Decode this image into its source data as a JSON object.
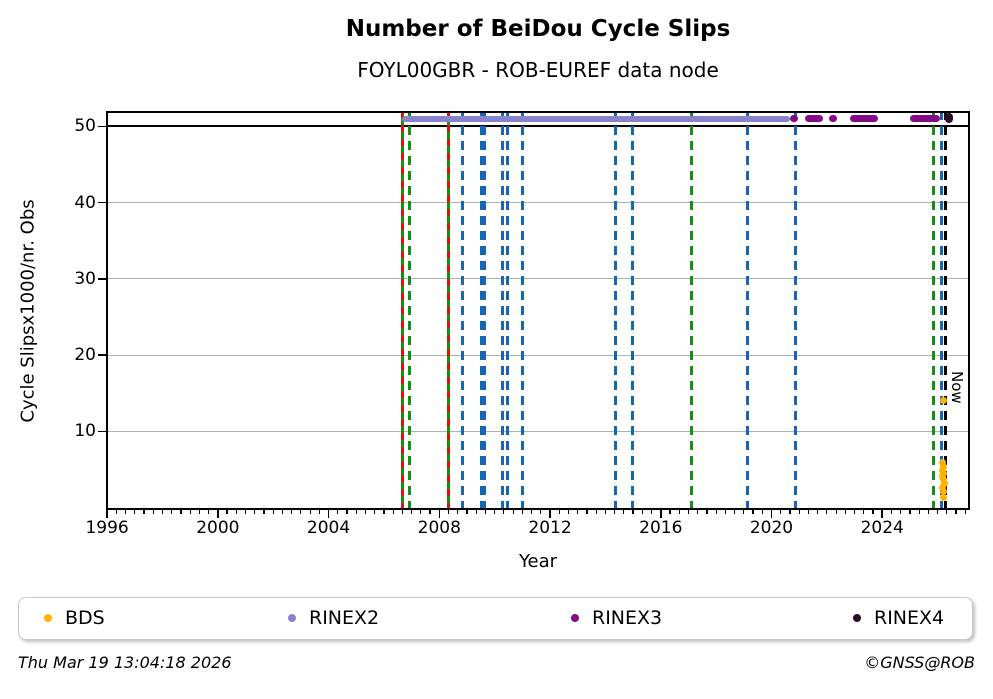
{
  "header": {
    "title": "Number of BeiDou Cycle Slips",
    "subtitle": "FOYL00GBR - ROB-EUREF data node"
  },
  "axes": {
    "xlabel": "Year",
    "ylabel": "Cycle Slipsx1000/nr. Obs"
  },
  "annotations": {
    "now_label": "Now"
  },
  "legend": {
    "items": [
      {
        "label": "BDS",
        "color": "#ffb300"
      },
      {
        "label": "RINEX2",
        "color": "#8884c9"
      },
      {
        "label": "RINEX3",
        "color": "#850a85"
      },
      {
        "label": "RINEX4",
        "color": "#2a0b2a"
      }
    ]
  },
  "footer": {
    "timestamp": "Thu Mar 19 13:04:18 2026",
    "credit": "©GNSS@ROB"
  },
  "chart_data": {
    "type": "scatter",
    "title": "Number of BeiDou Cycle Slips",
    "subtitle": "FOYL00GBR - ROB-EUREF data node",
    "xlabel": "Year",
    "ylabel": "Cycle Slipsx1000/nr. Obs",
    "xlim": [
      1995.96,
      2027.17
    ],
    "ylim": [
      -0.3,
      52.0
    ],
    "xticks": [
      1996,
      2000,
      2004,
      2008,
      2012,
      2016,
      2020,
      2024
    ],
    "yticks": [
      10,
      20,
      30,
      40,
      50
    ],
    "x_minor_step_years": 0.33333,
    "grid": "horizontal-only",
    "grid_color": "#b0b0b0",
    "threshold_line": {
      "y": 50,
      "color": "#000000"
    },
    "legend_position": "bottom-expanded",
    "series": [
      {
        "name": "BDS",
        "color": "#ffb300",
        "marker": "dot",
        "points": [
          [
            2026.2,
            14.1
          ],
          [
            2026.17,
            5.9
          ],
          [
            2026.22,
            5.4
          ],
          [
            2026.18,
            4.9
          ],
          [
            2026.23,
            4.5
          ],
          [
            2026.16,
            4.1
          ],
          [
            2026.2,
            3.7
          ],
          [
            2026.24,
            3.2
          ],
          [
            2026.18,
            2.7
          ],
          [
            2026.21,
            2.1
          ],
          [
            2026.2,
            1.3
          ]
        ]
      },
      {
        "name": "RINEX2",
        "color": "#8884c9",
        "marker": "thick-line",
        "value": 51,
        "segments": [
          [
            2006.67,
            2020.67
          ]
        ]
      },
      {
        "name": "RINEX3",
        "color": "#850a85",
        "marker": "thick-line",
        "value": 51,
        "segments": [
          [
            2020.68,
            2020.76
          ],
          [
            2021.21,
            2021.86
          ],
          [
            2022.09,
            2022.17
          ],
          [
            2022.84,
            2023.85
          ],
          [
            2025.0,
            2026.09
          ]
        ]
      },
      {
        "name": "RINEX4",
        "color": "#2a0b2a",
        "marker": "thick-line",
        "value": 51.1,
        "segments": [
          [
            2026.25,
            2026.38
          ]
        ]
      }
    ],
    "event_lines": [
      {
        "x": 2006.67,
        "style": "red-green"
      },
      {
        "x": 2006.94,
        "style": "green"
      },
      {
        "x": 2008.32,
        "style": "red-green"
      },
      {
        "x": 2008.82,
        "style": "blue"
      },
      {
        "x": 2009.51,
        "style": "blue"
      },
      {
        "x": 2009.65,
        "style": "blue"
      },
      {
        "x": 2010.3,
        "style": "blue"
      },
      {
        "x": 2010.48,
        "style": "blue"
      },
      {
        "x": 2011.02,
        "style": "blue"
      },
      {
        "x": 2014.38,
        "style": "blue"
      },
      {
        "x": 2014.99,
        "style": "blue"
      },
      {
        "x": 2017.1,
        "style": "green"
      },
      {
        "x": 2019.12,
        "style": "blue"
      },
      {
        "x": 2020.85,
        "style": "blue"
      },
      {
        "x": 2025.86,
        "style": "green"
      },
      {
        "x": 2026.15,
        "style": "blue"
      }
    ],
    "event_line_colors": {
      "blue": "#1666b4",
      "green": "#149114",
      "red": "#dd1111",
      "now": "#000000"
    },
    "now_line": {
      "x": 2026.27,
      "label": "Now"
    }
  }
}
